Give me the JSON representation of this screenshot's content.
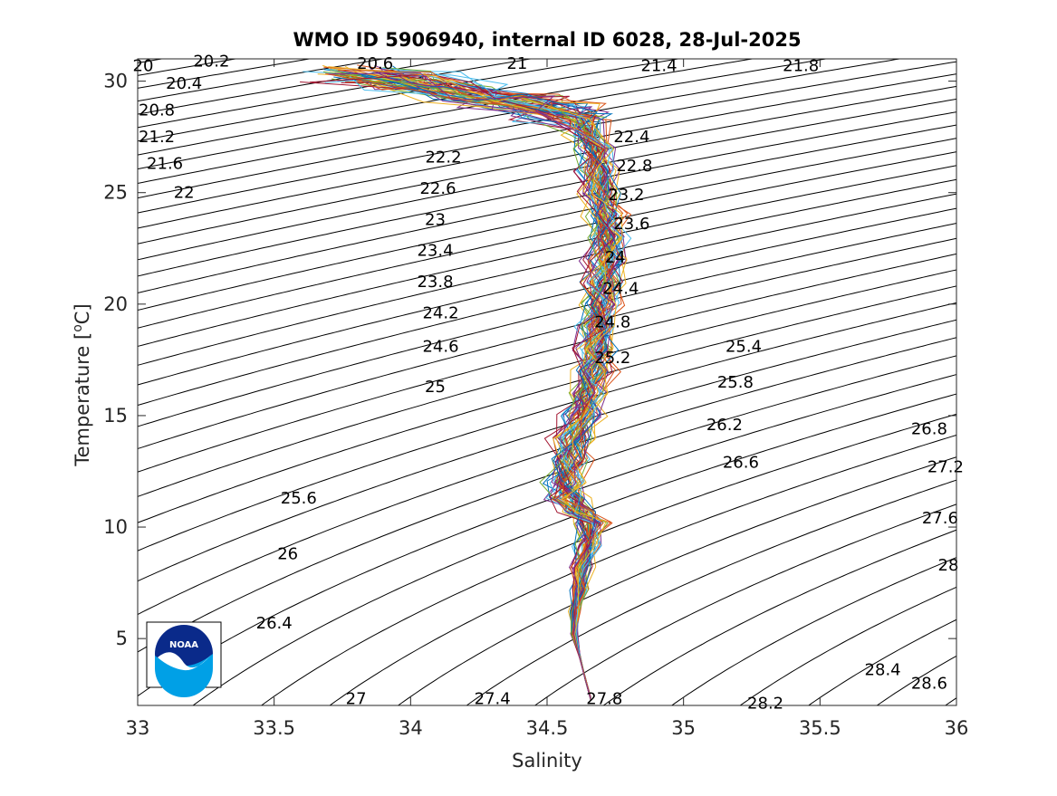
{
  "chart_data": {
    "type": "line",
    "title": "WMO ID 5906940, internal ID 6028, 28-Jul-2025",
    "xlabel": "Salinity",
    "ylabel_text": "Temperature [",
    "ylabel_unit": "o",
    "ylabel_tail": "C]",
    "xlim": [
      33,
      36
    ],
    "ylim": [
      2,
      31
    ],
    "xticks": [
      33,
      33.5,
      34,
      34.5,
      35,
      35.5,
      36
    ],
    "xtick_labels": [
      "33",
      "33.5",
      "34",
      "34.5",
      "35",
      "35.5",
      "36"
    ],
    "yticks": [
      5,
      10,
      15,
      20,
      25,
      30
    ],
    "ytick_labels": [
      "5",
      "10",
      "15",
      "20",
      "25",
      "30"
    ],
    "grid": false,
    "isopycnal_levels": [
      19.8,
      20.0,
      20.2,
      20.4,
      20.6,
      20.8,
      21.0,
      21.2,
      21.4,
      21.6,
      21.8,
      22.0,
      22.2,
      22.4,
      22.6,
      22.8,
      23.0,
      23.2,
      23.4,
      23.6,
      23.8,
      24.0,
      24.2,
      24.4,
      24.6,
      24.8,
      25.0,
      25.2,
      25.4,
      25.6,
      25.8,
      26.0,
      26.2,
      26.4,
      26.6,
      26.8,
      27.0,
      27.2,
      27.4,
      27.6,
      27.8,
      28.0,
      28.2,
      28.4,
      28.6,
      28.8
    ],
    "contour_labels": [
      {
        "text": "20",
        "s": 33.02,
        "t": 30.7
      },
      {
        "text": "20.2",
        "s": 33.27,
        "t": 30.9
      },
      {
        "text": "20.6",
        "s": 33.87,
        "t": 30.8
      },
      {
        "text": "21",
        "s": 34.39,
        "t": 30.8
      },
      {
        "text": "21.4",
        "s": 34.91,
        "t": 30.7
      },
      {
        "text": "21.8",
        "s": 35.43,
        "t": 30.7
      },
      {
        "text": "20.4",
        "s": 33.17,
        "t": 29.9
      },
      {
        "text": "20.8",
        "s": 33.07,
        "t": 28.7
      },
      {
        "text": "21.2",
        "s": 33.07,
        "t": 27.5
      },
      {
        "text": "21.6",
        "s": 33.1,
        "t": 26.3
      },
      {
        "text": "22",
        "s": 33.17,
        "t": 25.0
      },
      {
        "text": "22.2",
        "s": 34.12,
        "t": 26.6
      },
      {
        "text": "22.6",
        "s": 34.1,
        "t": 25.2
      },
      {
        "text": "23",
        "s": 34.09,
        "t": 23.8
      },
      {
        "text": "23.4",
        "s": 34.09,
        "t": 22.4
      },
      {
        "text": "23.8",
        "s": 34.09,
        "t": 21.0
      },
      {
        "text": "24.2",
        "s": 34.11,
        "t": 19.6
      },
      {
        "text": "24.6",
        "s": 34.11,
        "t": 18.1
      },
      {
        "text": "25",
        "s": 34.09,
        "t": 16.3
      },
      {
        "text": "22.4",
        "s": 34.81,
        "t": 27.5
      },
      {
        "text": "22.8",
        "s": 34.82,
        "t": 26.2
      },
      {
        "text": "23.2",
        "s": 34.79,
        "t": 24.9
      },
      {
        "text": "23.6",
        "s": 34.81,
        "t": 23.6
      },
      {
        "text": "24",
        "s": 34.75,
        "t": 22.1
      },
      {
        "text": "24.4",
        "s": 34.77,
        "t": 20.7
      },
      {
        "text": "24.8",
        "s": 34.74,
        "t": 19.2
      },
      {
        "text": "25.2",
        "s": 34.74,
        "t": 17.6
      },
      {
        "text": "25.4",
        "s": 35.22,
        "t": 18.1
      },
      {
        "text": "25.8",
        "s": 35.19,
        "t": 16.5
      },
      {
        "text": "26.2",
        "s": 35.15,
        "t": 14.6
      },
      {
        "text": "26.6",
        "s": 35.21,
        "t": 12.9
      },
      {
        "text": "26.8",
        "s": 35.9,
        "t": 14.4
      },
      {
        "text": "27.2",
        "s": 35.96,
        "t": 12.7
      },
      {
        "text": "27.6",
        "s": 35.94,
        "t": 10.4
      },
      {
        "text": "28",
        "s": 35.97,
        "t": 8.3
      },
      {
        "text": "25.6",
        "s": 33.59,
        "t": 11.3
      },
      {
        "text": "26",
        "s": 33.55,
        "t": 8.8
      },
      {
        "text": "26.4",
        "s": 33.5,
        "t": 5.7
      },
      {
        "text": "27",
        "s": 33.8,
        "t": 2.3
      },
      {
        "text": "27.4",
        "s": 34.3,
        "t": 2.3
      },
      {
        "text": "27.8",
        "s": 34.71,
        "t": 2.3
      },
      {
        "text": "28.2",
        "s": 35.3,
        "t": 2.1
      },
      {
        "text": "28.4",
        "s": 35.73,
        "t": 3.6
      },
      {
        "text": "28.6",
        "s": 35.9,
        "t": 3.0
      }
    ],
    "profile_backbone": [
      [
        34.66,
        2.3
      ],
      [
        34.64,
        3.2
      ],
      [
        34.62,
        4.2
      ],
      [
        34.6,
        5.2
      ],
      [
        34.6,
        6.2
      ],
      [
        34.62,
        7.2
      ],
      [
        34.63,
        8.2
      ],
      [
        34.65,
        9.2
      ],
      [
        34.66,
        10.2
      ],
      [
        34.62,
        10.7
      ],
      [
        34.58,
        11.3
      ],
      [
        34.57,
        12.0
      ],
      [
        34.58,
        13.0
      ],
      [
        34.6,
        14.0
      ],
      [
        34.63,
        15.0
      ],
      [
        34.65,
        16.0
      ],
      [
        34.67,
        17.0
      ],
      [
        34.68,
        18.0
      ],
      [
        34.69,
        19.0
      ],
      [
        34.7,
        20.0
      ],
      [
        34.71,
        21.0
      ],
      [
        34.72,
        22.0
      ],
      [
        34.72,
        23.0
      ],
      [
        34.71,
        24.0
      ],
      [
        34.7,
        25.0
      ],
      [
        34.69,
        26.0
      ],
      [
        34.68,
        27.0
      ],
      [
        34.64,
        28.0
      ],
      [
        34.55,
        28.6
      ],
      [
        34.4,
        29.0
      ],
      [
        34.2,
        29.5
      ],
      [
        34.0,
        30.0
      ],
      [
        33.8,
        30.3
      ]
    ],
    "profile_count": 60,
    "series_colors": [
      "#0072bd",
      "#d95319",
      "#edb120",
      "#7e2f8e",
      "#77ac30",
      "#4dbeee",
      "#a2142f"
    ],
    "logo_text": "NOAA"
  }
}
